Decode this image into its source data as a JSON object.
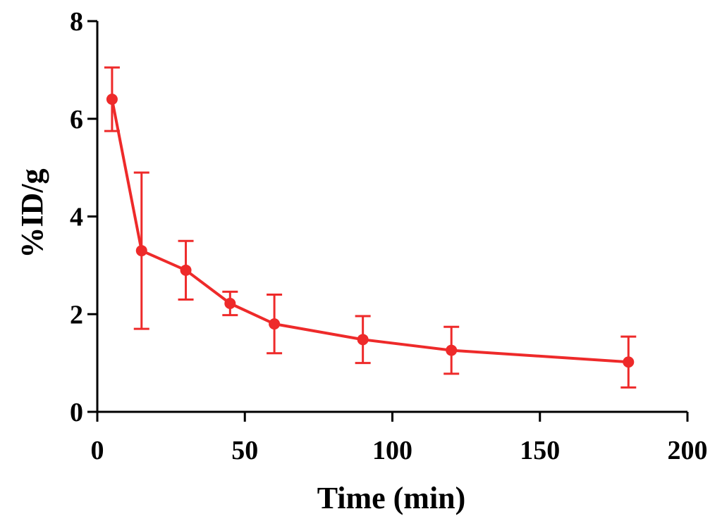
{
  "chart_data": {
    "type": "line",
    "title": "",
    "xlabel": "Time (min)",
    "ylabel": "%ID/g",
    "xlim": [
      0,
      200
    ],
    "ylim": [
      0,
      8
    ],
    "xticks": [
      0,
      50,
      100,
      150,
      200
    ],
    "yticks": [
      0,
      2,
      4,
      6,
      8
    ],
    "grid": false,
    "legend": "none",
    "color": "#ee2a2a",
    "series": [
      {
        "name": "%ID/g",
        "x": [
          5,
          15,
          30,
          45,
          60,
          90,
          120,
          180
        ],
        "y": [
          6.4,
          3.3,
          2.9,
          2.22,
          1.8,
          1.48,
          1.26,
          1.02
        ],
        "err": [
          0.65,
          1.6,
          0.6,
          0.24,
          0.6,
          0.48,
          0.48,
          0.52
        ]
      }
    ]
  }
}
